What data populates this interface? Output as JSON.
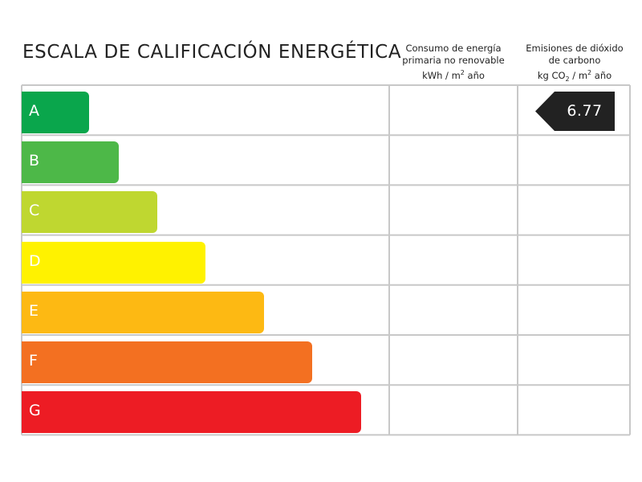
{
  "title": "ESCALA DE CALIFICACIÓN ENERGÉTICA",
  "columns": {
    "consumo": {
      "line1": "Consumo de energía",
      "line2": "primaria no renovable",
      "line3_pre": "kWh / m",
      "line3_sup": "2",
      "line3_post": " año"
    },
    "emisiones": {
      "line1": "Emisiones de dióxido",
      "line2": "de carbono",
      "line3_pre": "kg CO",
      "line3_sub": "2",
      "line3_mid": " / m",
      "line3_sup": "2",
      "line3_post": " año"
    }
  },
  "chart_data": {
    "type": "table",
    "rating_scale": [
      {
        "letter": "A",
        "color": "#0aa64c"
      },
      {
        "letter": "B",
        "color": "#4db848"
      },
      {
        "letter": "C",
        "color": "#bfd730"
      },
      {
        "letter": "D",
        "color": "#fff200"
      },
      {
        "letter": "E",
        "color": "#fdb913"
      },
      {
        "letter": "F",
        "color": "#f37021"
      },
      {
        "letter": "G",
        "color": "#ed1c24"
      }
    ],
    "consumo_rating": null,
    "consumo_value": null,
    "emisiones_rating": "A",
    "emisiones_value": "6.77"
  },
  "colors": {
    "grid": "#c8c8c8",
    "tag": "#222222"
  }
}
